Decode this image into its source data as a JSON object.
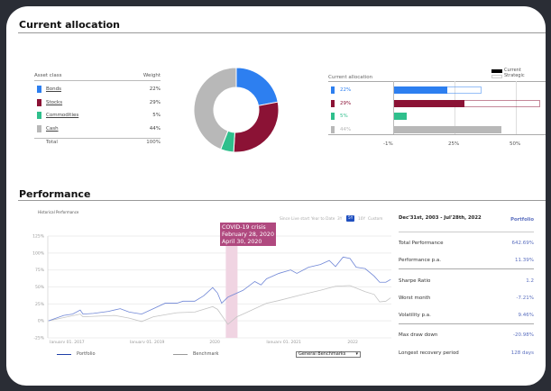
{
  "allocation": {
    "title": "Current allocation",
    "table": {
      "col_asset": "Asset class",
      "col_weight": "Weight",
      "rows": [
        {
          "label": "Bonds",
          "weight": "22%",
          "color": "#2d7ff0"
        },
        {
          "label": "Stocks",
          "weight": "29%",
          "color": "#8b1235"
        },
        {
          "label": "Commodities",
          "weight": "5%",
          "color": "#2fbf8c"
        },
        {
          "label": "Cash",
          "weight": "44%",
          "color": "#b8b8b8"
        }
      ],
      "total_label": "Total",
      "total_value": "100%"
    },
    "donut": {
      "values": [
        22,
        29,
        5,
        44
      ]
    },
    "bars": {
      "title": "Current allocation",
      "legend_current": "Current",
      "legend_strategic": "Strategic",
      "rows": [
        {
          "label": "22%",
          "current": 22,
          "strategic": 36
        },
        {
          "label": "29%",
          "current": 29,
          "strategic": 60
        },
        {
          "label": "5%",
          "current": 5
        },
        {
          "label": "44%",
          "current": 44
        }
      ],
      "ticks": [
        "-1%",
        "25%",
        "50%"
      ]
    }
  },
  "performance": {
    "title": "Performance",
    "chart_title": "Historical Performance",
    "ranges": [
      "Since Live start",
      "Year to Date",
      "3Y",
      "5Y",
      "10Y",
      "Custom"
    ],
    "selected_range": "5Y",
    "annotation": {
      "title": "COVID-19 crisis",
      "start": "February 28, 2020",
      "end": "April 30, 2020"
    },
    "legend_portfolio": "Portfolio",
    "legend_benchmark": "Benchmark",
    "benchmark_select": "General Benchmarks",
    "stats_header": "Dec'31st, 2003 - Jul'28th, 2022",
    "stats_col": "Portfolio",
    "stats": [
      {
        "label": "Total Performance",
        "value": "642.69%"
      },
      {
        "label": "Performance p.a.",
        "value": "11.39%"
      },
      {
        "label": "Sharpe Ratio",
        "value": "1.2"
      },
      {
        "label": "Worst month",
        "value": "-7.21%"
      },
      {
        "label": "Volatility p.a.",
        "value": "9.46%"
      },
      {
        "label": "Max draw down",
        "value": "-20.98%"
      },
      {
        "label": "Longest recovery period",
        "value": "128 days"
      }
    ]
  },
  "chart_data": {
    "type": "line",
    "xlim": [
      2017.58,
      2022.56
    ],
    "ylim": [
      -25,
      125
    ],
    "yticks": [
      "125%",
      "100%",
      "75%",
      "50%",
      "25%",
      "0%",
      "-25%"
    ],
    "ytick_values": [
      125,
      100,
      75,
      50,
      25,
      0,
      -25
    ],
    "xticks": [
      {
        "label": "January 01, 2017",
        "x": 2017.86
      },
      {
        "label": "January 01, 2019",
        "x": 2019.02
      },
      {
        "label": "2020",
        "x": 2020.0
      },
      {
        "label": "January 01, 2021",
        "x": 2021.0
      },
      {
        "label": "2022",
        "x": 2022.0
      }
    ],
    "band": [
      2020.16,
      2020.33
    ],
    "grid": true,
    "series": [
      {
        "name": "Portfolio",
        "color": "#6f86d6",
        "points": [
          [
            2017.59,
            0
          ],
          [
            2017.81,
            8
          ],
          [
            2017.94,
            10
          ],
          [
            2018.05,
            16
          ],
          [
            2018.09,
            10
          ],
          [
            2018.24,
            11
          ],
          [
            2018.46,
            14
          ],
          [
            2018.63,
            18
          ],
          [
            2018.76,
            13
          ],
          [
            2018.94,
            10
          ],
          [
            2019.11,
            18
          ],
          [
            2019.28,
            26
          ],
          [
            2019.45,
            26
          ],
          [
            2019.54,
            29
          ],
          [
            2019.71,
            29
          ],
          [
            2019.84,
            37
          ],
          [
            2019.97,
            49
          ],
          [
            2020.04,
            41
          ],
          [
            2020.1,
            26
          ],
          [
            2020.19,
            35
          ],
          [
            2020.41,
            45
          ],
          [
            2020.58,
            58
          ],
          [
            2020.67,
            53
          ],
          [
            2020.75,
            62
          ],
          [
            2020.93,
            70
          ],
          [
            2021.1,
            75
          ],
          [
            2021.19,
            70
          ],
          [
            2021.36,
            79
          ],
          [
            2021.53,
            83
          ],
          [
            2021.66,
            89
          ],
          [
            2021.75,
            80
          ],
          [
            2021.86,
            94
          ],
          [
            2021.96,
            92
          ],
          [
            2022.05,
            79
          ],
          [
            2022.18,
            77
          ],
          [
            2022.31,
            66
          ],
          [
            2022.39,
            57
          ],
          [
            2022.48,
            57
          ],
          [
            2022.55,
            61
          ]
        ]
      },
      {
        "name": "Benchmark",
        "color": "#c4c4c4",
        "points": [
          [
            2017.59,
            0
          ],
          [
            2018.05,
            10
          ],
          [
            2018.09,
            6
          ],
          [
            2018.55,
            8
          ],
          [
            2018.76,
            4
          ],
          [
            2018.94,
            -1
          ],
          [
            2019.11,
            6
          ],
          [
            2019.45,
            12
          ],
          [
            2019.71,
            13
          ],
          [
            2019.97,
            21
          ],
          [
            2020.04,
            17
          ],
          [
            2020.19,
            -5
          ],
          [
            2020.32,
            6
          ],
          [
            2020.41,
            10
          ],
          [
            2020.75,
            26
          ],
          [
            2020.93,
            30
          ],
          [
            2021.28,
            39
          ],
          [
            2021.53,
            45
          ],
          [
            2021.75,
            51
          ],
          [
            2021.96,
            52
          ],
          [
            2022.18,
            43
          ],
          [
            2022.31,
            39
          ],
          [
            2022.39,
            28
          ],
          [
            2022.48,
            29
          ],
          [
            2022.55,
            34
          ]
        ]
      }
    ]
  }
}
